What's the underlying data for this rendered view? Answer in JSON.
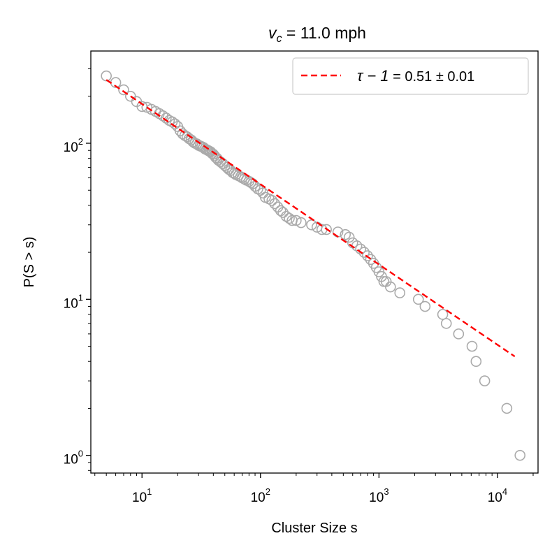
{
  "chart_data": {
    "type": "scatter",
    "title": {
      "symbol": "v",
      "subscript": "c",
      "rest": " = 11.0 mph"
    },
    "xlabel": "Cluster Size s",
    "ylabel": "P(S > s)",
    "xscale": "log",
    "yscale": "log",
    "xlim": [
      3.7,
      22000
    ],
    "ylim": [
      0.77,
      390
    ],
    "x_ticks": [
      {
        "value": 10,
        "base": "10",
        "exp": "1"
      },
      {
        "value": 100,
        "base": "10",
        "exp": "2"
      },
      {
        "value": 1000,
        "base": "10",
        "exp": "3"
      },
      {
        "value": 10000,
        "base": "10",
        "exp": "4"
      }
    ],
    "y_ticks": [
      {
        "value": 1,
        "base": "10",
        "exp": "0"
      },
      {
        "value": 10,
        "base": "10",
        "exp": "1"
      },
      {
        "value": 100,
        "base": "10",
        "exp": "2"
      }
    ],
    "grid": false,
    "legend_position": "top-right",
    "legend": {
      "symbol": "τ − 1",
      "rest": " = 0.51 ± 0.01"
    },
    "marker_color": "#aaaaaa",
    "fit_color": "#ff0000",
    "series": [
      {
        "kind": "points",
        "x": [
          5,
          6,
          7,
          8,
          9,
          10,
          11,
          12,
          13,
          14,
          15,
          16,
          17,
          18,
          19,
          20,
          21,
          22,
          23,
          24,
          25,
          26,
          27,
          28,
          29,
          30,
          31,
          32,
          33,
          34,
          35,
          36,
          37,
          38,
          39,
          40,
          41,
          42,
          43,
          44,
          46,
          48,
          50,
          52,
          54,
          56,
          58,
          60,
          62,
          65,
          68,
          70,
          73,
          76,
          80,
          83,
          86,
          90,
          95,
          100,
          105,
          110,
          118,
          125,
          132,
          140,
          148,
          155,
          165,
          175,
          185,
          200,
          220,
          270,
          300,
          330,
          360,
          450,
          520,
          560,
          600,
          650,
          700,
          750,
          800,
          850,
          900,
          950,
          1000,
          1050,
          1100,
          1150,
          1250,
          1500,
          2150,
          2450,
          3450,
          3700,
          4700,
          6100,
          6600,
          7800,
          12000,
          15500
        ],
        "y": [
          270,
          245,
          220,
          200,
          185,
          172,
          170,
          165,
          160,
          155,
          150,
          145,
          140,
          137,
          133,
          128,
          120,
          115,
          112,
          110,
          107,
          105,
          102,
          100,
          99,
          97,
          96,
          95,
          94,
          92,
          91,
          90,
          89,
          88,
          86,
          85,
          83,
          81,
          80,
          78,
          76,
          74,
          72,
          70,
          68,
          67,
          65,
          64,
          63,
          62,
          61,
          60,
          59,
          58,
          57,
          56,
          55,
          53,
          51,
          50,
          48,
          45,
          44,
          43,
          41,
          39,
          37,
          36,
          34,
          33,
          32,
          32,
          31,
          30,
          29,
          28,
          28,
          27,
          26,
          25,
          23,
          22,
          21,
          20,
          19,
          18,
          17,
          16,
          15,
          14,
          13,
          13,
          12,
          11,
          10,
          9,
          8,
          7,
          6,
          5,
          4,
          3,
          2,
          1
        ]
      },
      {
        "kind": "fit-line",
        "x": [
          5,
          14000
        ],
        "y": [
          255,
          4.3
        ]
      }
    ]
  }
}
